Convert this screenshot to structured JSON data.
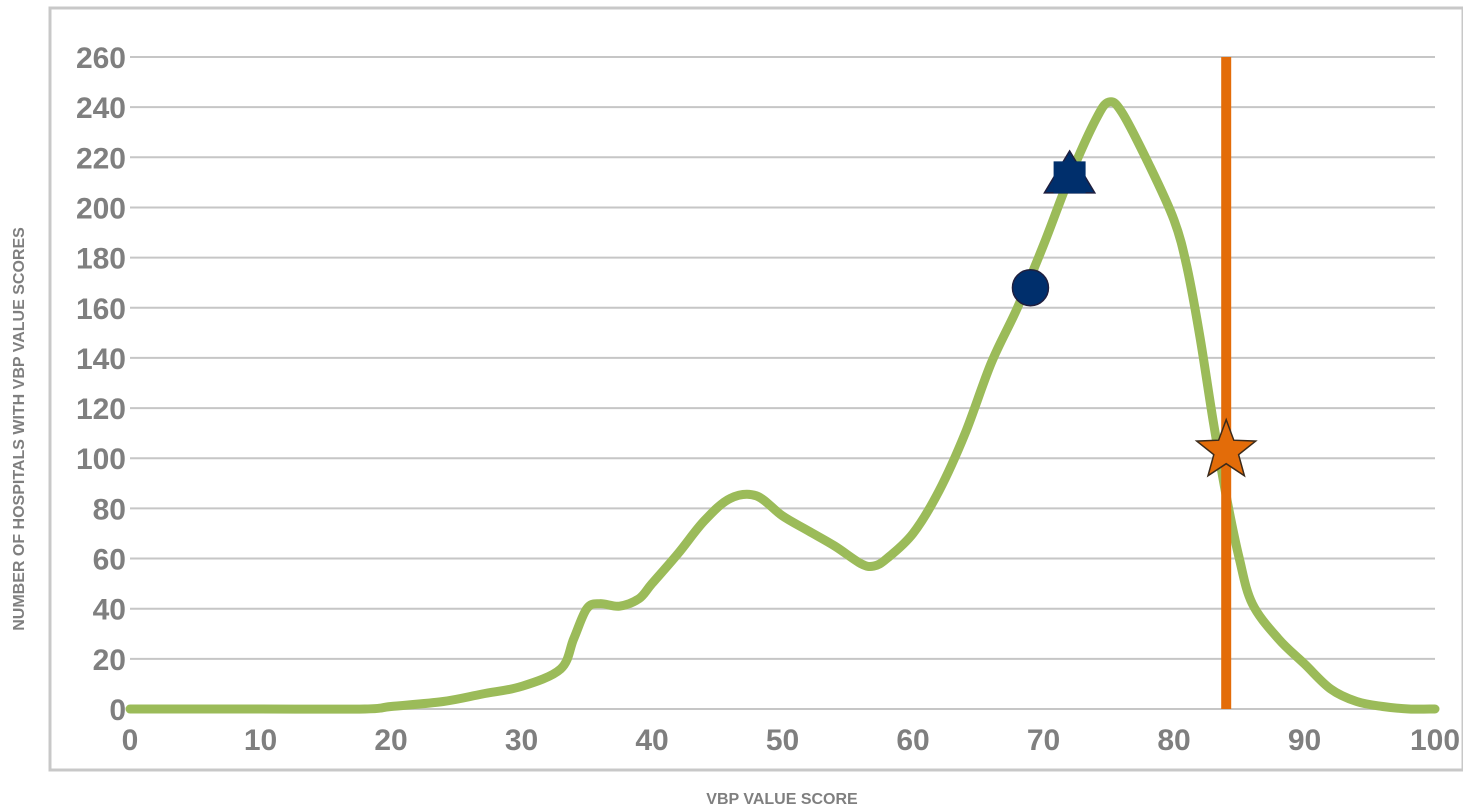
{
  "chart_data": {
    "type": "line",
    "xlabel": "VBP VALUE SCORE",
    "ylabel": "NUMBER OF HOSPITALS WITH VBP VALUE SCORES",
    "xlim": [
      0,
      100
    ],
    "ylim": [
      0,
      260
    ],
    "x_ticks": [
      "0",
      "10",
      "20",
      "30",
      "40",
      "50",
      "60",
      "70",
      "80",
      "90",
      "100"
    ],
    "y_ticks": [
      "0",
      "20",
      "40",
      "60",
      "80",
      "100",
      "120",
      "140",
      "160",
      "180",
      "200",
      "220",
      "240",
      "260"
    ],
    "grid": true,
    "legend": "none",
    "series": [
      {
        "type": "line",
        "color": "#9bbb59",
        "x": [
          0,
          10,
          18,
          20,
          24,
          27,
          30,
          33,
          34,
          35,
          36,
          37.5,
          39,
          40,
          42,
          44,
          46,
          48,
          50,
          52,
          54,
          56,
          57,
          58,
          60,
          62,
          64,
          66,
          68,
          70,
          72,
          74,
          75,
          76,
          78,
          80,
          81,
          82,
          83,
          84,
          85,
          86,
          88,
          90,
          92,
          94,
          96,
          98,
          100
        ],
        "y": [
          0,
          0,
          0,
          1,
          3,
          6,
          9,
          16,
          28,
          40,
          42,
          41,
          44,
          50,
          62,
          75,
          84,
          85,
          77,
          71,
          65,
          58,
          57,
          60,
          70,
          87,
          110,
          138,
          160,
          185,
          212,
          235,
          242,
          238,
          218,
          195,
          176,
          148,
          115,
          85,
          60,
          42,
          28,
          18,
          8,
          3,
          1,
          0,
          0
        ]
      },
      {
        "type": "vertical-line",
        "color": "#e36c09",
        "x": 84
      }
    ],
    "markers": [
      {
        "shape": "circle",
        "color": "#002f6c",
        "x": 69,
        "y": 168
      },
      {
        "shape": "triangle",
        "color": "#002f6c",
        "x": 72,
        "y": 213
      },
      {
        "shape": "square",
        "color": "#002f6c",
        "x": 72,
        "y": 212
      },
      {
        "shape": "star",
        "color": "#e36c09",
        "x": 84,
        "y": 103
      }
    ]
  }
}
